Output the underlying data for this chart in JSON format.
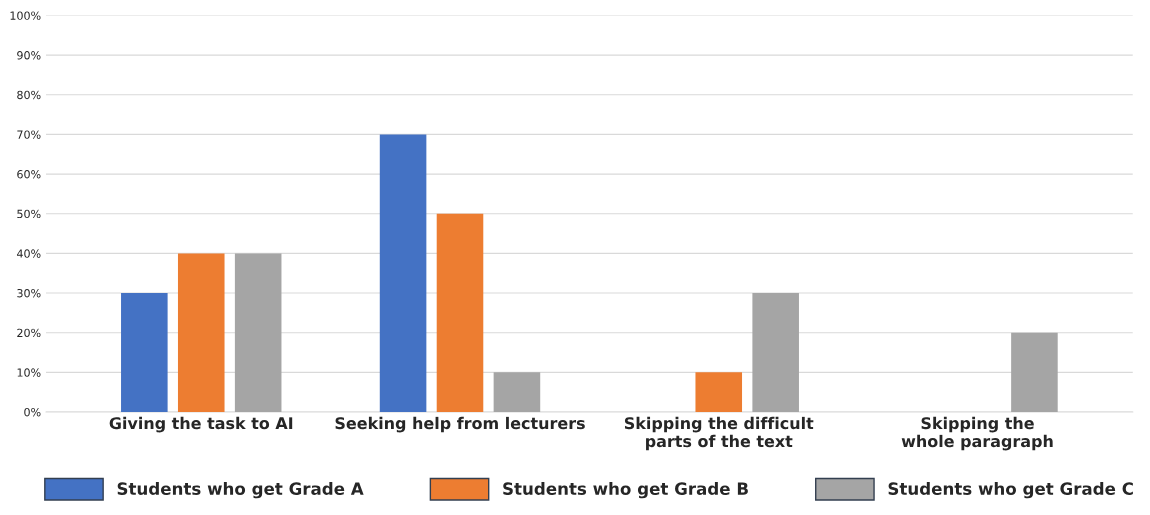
{
  "chart_data": {
    "type": "bar",
    "categories": [
      "Giving the task to AI",
      "Seeking help from lecturers",
      "Skipping the difficult\nparts of the text",
      "Skipping the\nwhole paragraph"
    ],
    "series": [
      {
        "name": "Students who get Grade A",
        "color": "#4472c4",
        "values": [
          30,
          70,
          null,
          null
        ]
      },
      {
        "name": "Students who get Grade B",
        "color": "#ed7d31",
        "values": [
          40,
          50,
          10,
          null
        ]
      },
      {
        "name": "Students who get Grade C",
        "color": "#a5a5a5",
        "values": [
          40,
          10,
          30,
          20
        ]
      }
    ],
    "ylim": [
      0,
      100
    ],
    "yticks": [
      {
        "value": 0,
        "label": "0%"
      },
      {
        "value": 10,
        "label": "10%"
      },
      {
        "value": 20,
        "label": "20%"
      },
      {
        "value": 30,
        "label": "30%"
      },
      {
        "value": 40,
        "label": "40%"
      },
      {
        "value": 50,
        "label": "50%"
      },
      {
        "value": 60,
        "label": "60%"
      },
      {
        "value": 70,
        "label": "70%"
      },
      {
        "value": 80,
        "label": "80%"
      },
      {
        "value": 90,
        "label": "90%"
      },
      {
        "value": 100,
        "label": "100%"
      }
    ],
    "grid": "y",
    "legend": "bottom"
  }
}
